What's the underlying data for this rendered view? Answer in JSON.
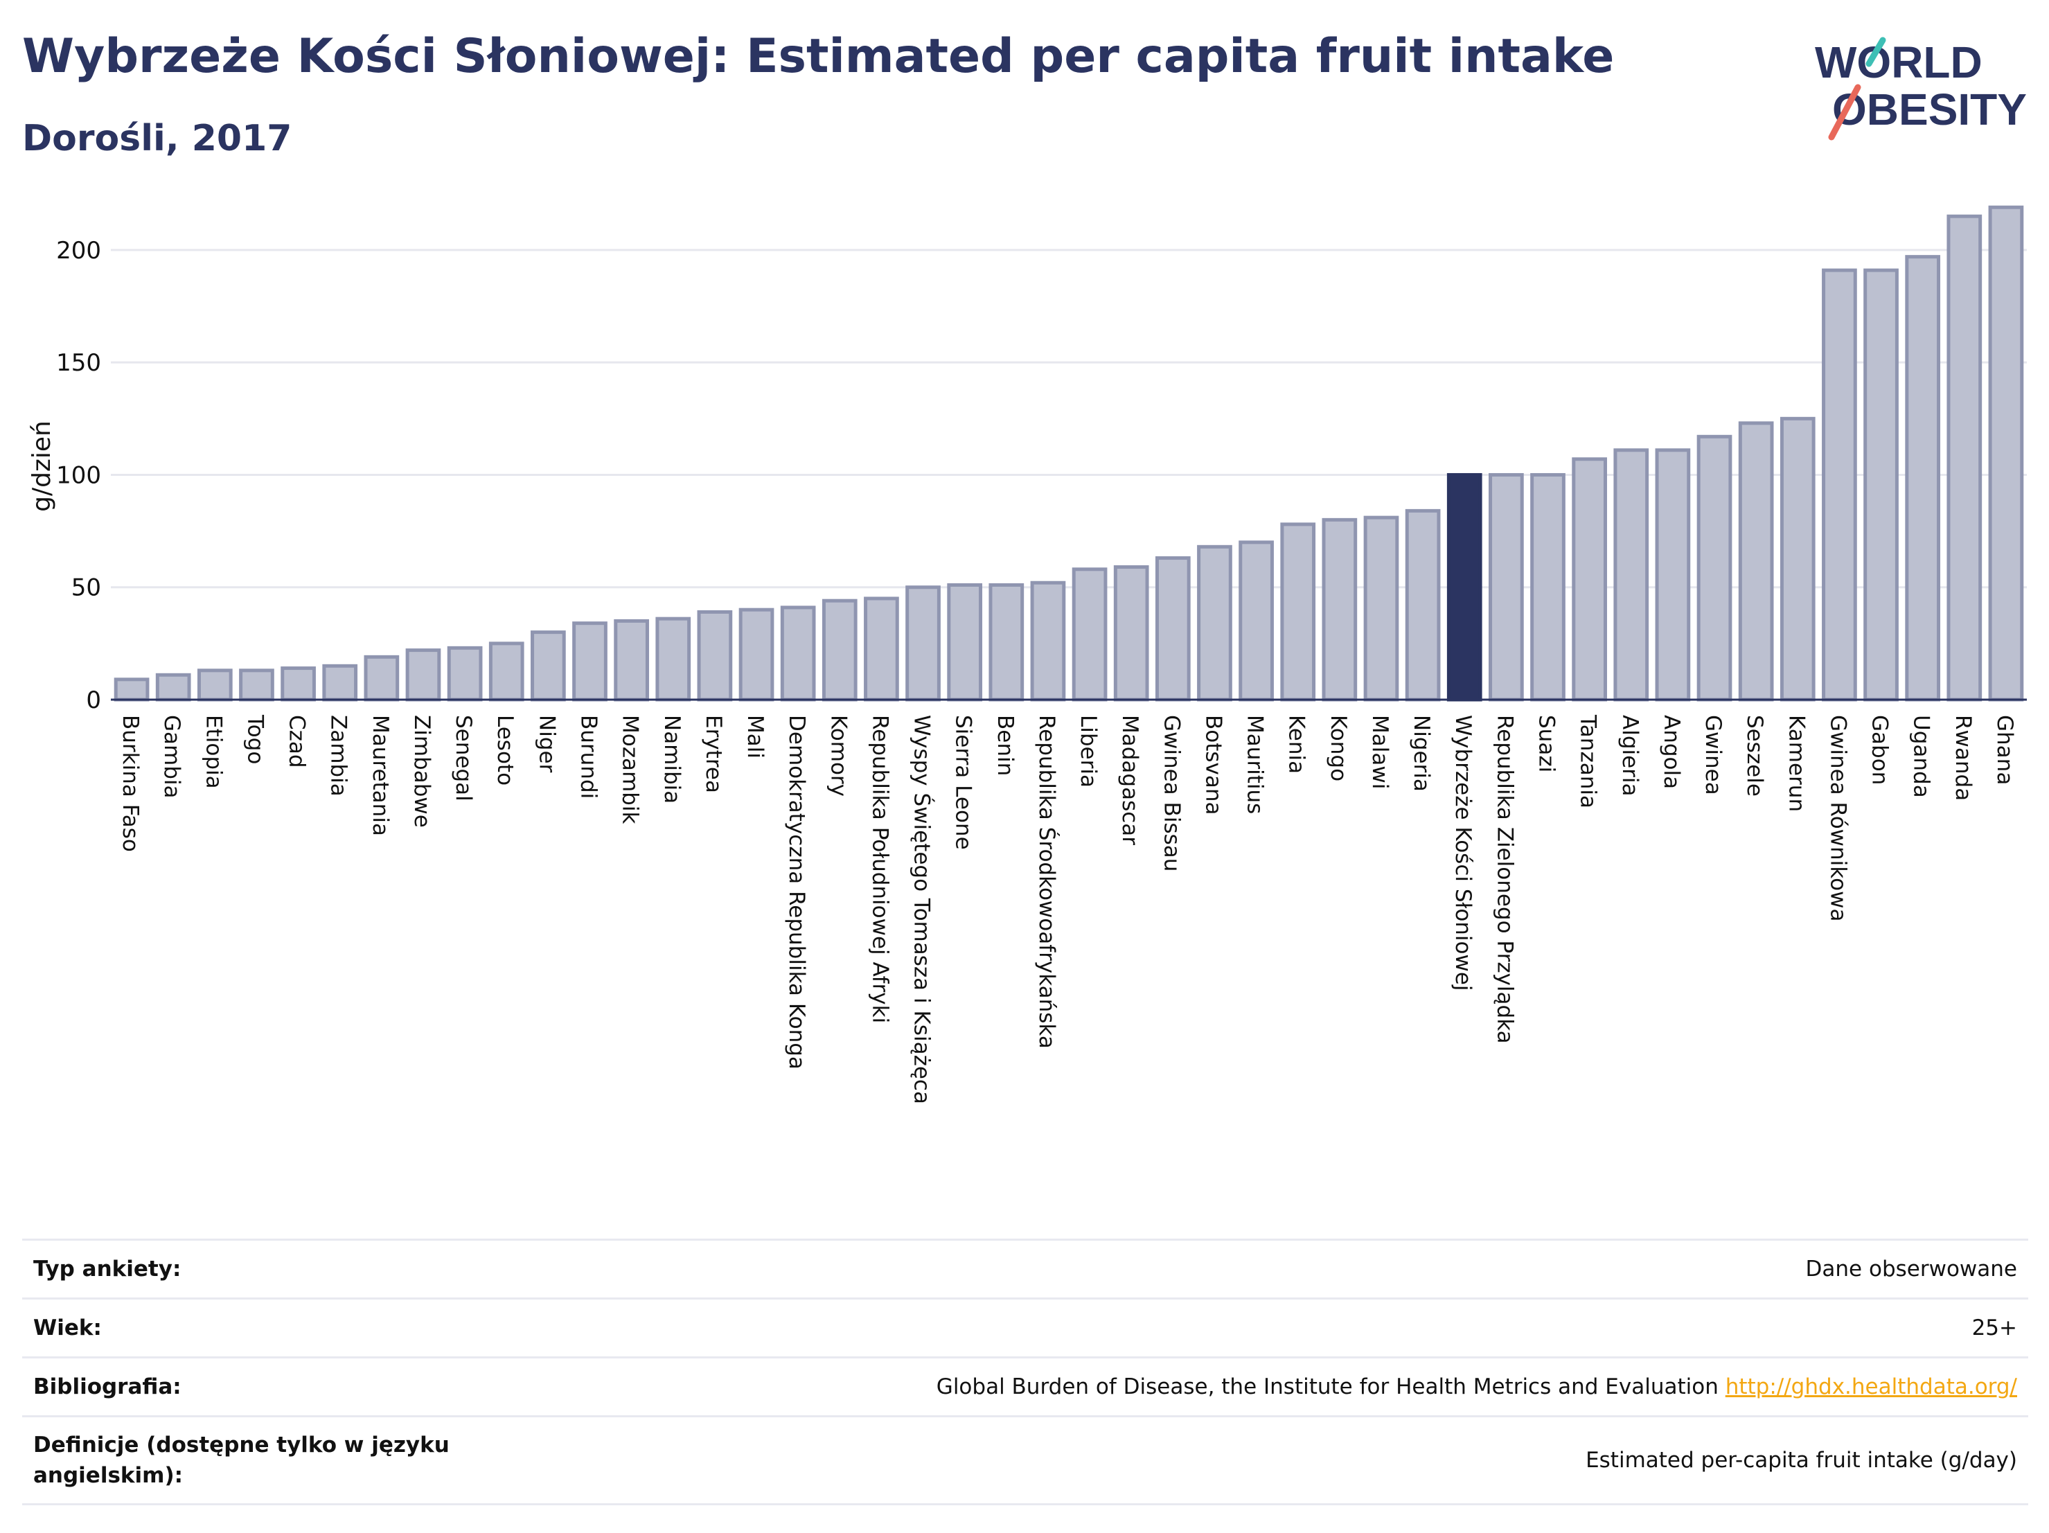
{
  "header": {
    "title": "Wybrzeże Kości Słoniowej: Estimated per capita fruit intake",
    "subtitle": "Dorośli, 2017"
  },
  "logo": {
    "line1": "WORLD",
    "line2": "OBESITY"
  },
  "colors": {
    "bar": "#bcc0d0",
    "bar_stroke": "#8f95b0",
    "highlight": "#2b3461",
    "text": "#2b3461",
    "grid": "#e6e7ee",
    "link": "#f3a712"
  },
  "chart_data": {
    "type": "bar",
    "title": "Wybrzeże Kości Słoniowej: Estimated per capita fruit intake",
    "subtitle": "Dorośli, 2017",
    "xlabel": "",
    "ylabel": "g/dzień",
    "ylim": [
      0,
      220
    ],
    "yticks": [
      0,
      50,
      100,
      150,
      200
    ],
    "grid": true,
    "highlight": "Wybrzeże Kości Słoniowej",
    "categories": [
      "Burkina Faso",
      "Gambia",
      "Etiopia",
      "Togo",
      "Czad",
      "Zambia",
      "Mauretania",
      "Zimbabwe",
      "Senegal",
      "Lesoto",
      "Niger",
      "Burundi",
      "Mozambik",
      "Namibia",
      "Erytrea",
      "Mali",
      "Demokratyczna Republika Konga",
      "Komory",
      "Republika Południowej Afryki",
      "Wyspy Świętego Tomasza i Książęca",
      "Sierra Leone",
      "Benin",
      "Republika Środkowoafrykańska",
      "Liberia",
      "Madagascar",
      "Gwinea Bissau",
      "Botsvana",
      "Mauritius",
      "Kenia",
      "Kongo",
      "Malawi",
      "Nigeria",
      "Wybrzeże Kości Słoniowej",
      "Republika Zielonego Przylądka",
      "Suazi",
      "Tanzania",
      "Algieria",
      "Angola",
      "Gwinea",
      "Seszele",
      "Kamerun",
      "Gwinea Równikowa",
      "Gabon",
      "Uganda",
      "Rwanda",
      "Ghana"
    ],
    "values": [
      9,
      11,
      13,
      13,
      14,
      15,
      19,
      22,
      23,
      25,
      30,
      34,
      35,
      36,
      39,
      40,
      41,
      44,
      45,
      50,
      51,
      51,
      52,
      58,
      59,
      63,
      68,
      70,
      78,
      80,
      81,
      84,
      100,
      100,
      100,
      107,
      111,
      111,
      117,
      123,
      125,
      191,
      191,
      197,
      215,
      219
    ]
  },
  "info_table": [
    {
      "label": "Typ ankiety:",
      "value": "Dane obserwowane"
    },
    {
      "label": "Wiek:",
      "value": "25+"
    },
    {
      "label": "Bibliografia:",
      "value": "Global Burden of Disease, the Institute for Health Metrics and Evaluation",
      "link": "http://ghdx.healthdata.org/"
    },
    {
      "label": "Definicje (dostępne tylko w języku angielskim):",
      "value": "Estimated per-capita fruit intake (g/day)"
    }
  ]
}
